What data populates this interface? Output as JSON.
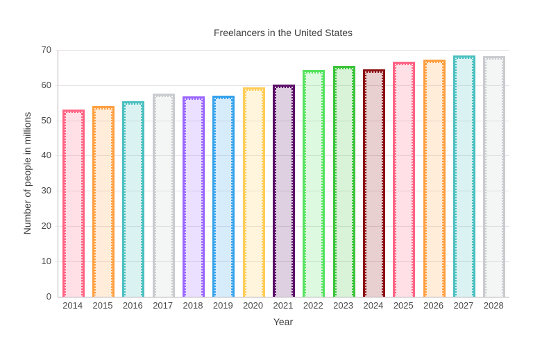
{
  "title": "Freelancers in the United States",
  "chart_data": {
    "type": "bar",
    "title": "Freelancers in the United States",
    "xlabel": "Year",
    "ylabel": "Number of people in millions",
    "categories": [
      "2014",
      "2015",
      "2016",
      "2017",
      "2018",
      "2019",
      "2020",
      "2021",
      "2022",
      "2023",
      "2024",
      "2025",
      "2026",
      "2027",
      "2028"
    ],
    "values": [
      53.0,
      54.0,
      55.5,
      57.5,
      56.8,
      57.1,
      59.3,
      60.1,
      64.2,
      65.5,
      64.4,
      66.6,
      67.3,
      68.4,
      68.3
    ],
    "ylim": [
      0,
      70
    ],
    "yticks": [
      0,
      10,
      20,
      30,
      40,
      50,
      60,
      70
    ],
    "grid": "horizontal",
    "legend": "none",
    "bar_border_colors": [
      "#FF6384",
      "#FF9F40",
      "#4BC0C0",
      "#C9CBCF",
      "#9966FF",
      "#36A2EB",
      "#FFCD56",
      "#5B0E68",
      "#55E35F",
      "#3BC43A",
      "#8B1014",
      "#FF6384",
      "#FF9F40",
      "#4BC0C0",
      "#C9CBCF"
    ],
    "bar_fill_alpha": 0.2,
    "colors": {
      "background": "#ffffff",
      "gridline": "#e6e2e6",
      "axis_line": "#b5afb5",
      "tick_label": "#484848",
      "title_text": "#3a3a3a"
    }
  }
}
